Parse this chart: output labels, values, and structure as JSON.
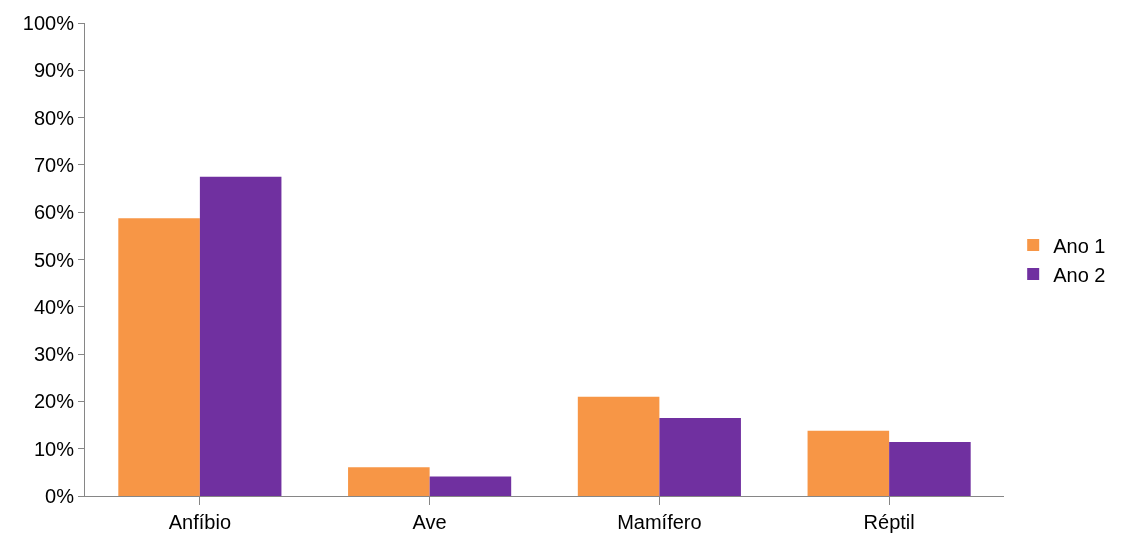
{
  "chart_data": {
    "type": "bar",
    "categories": [
      "Anfíbio",
      "Ave",
      "Mamífero",
      "Réptil"
    ],
    "series": [
      {
        "name": "Ano 1",
        "color": "#f79646",
        "values": [
          58.7,
          6.1,
          21.0,
          13.8
        ]
      },
      {
        "name": "Ano 2",
        "color": "#7030a0",
        "values": [
          67.5,
          4.1,
          16.5,
          11.4
        ]
      }
    ],
    "ylim": [
      0,
      100
    ],
    "yticks": [
      {
        "value": 0,
        "label": "0%"
      },
      {
        "value": 10,
        "label": "10%"
      },
      {
        "value": 20,
        "label": "20%"
      },
      {
        "value": 30,
        "label": "30%"
      },
      {
        "value": 40,
        "label": "40%"
      },
      {
        "value": 50,
        "label": "50%"
      },
      {
        "value": 60,
        "label": "60%"
      },
      {
        "value": 70,
        "label": "70%"
      },
      {
        "value": 80,
        "label": "80%"
      },
      {
        "value": 90,
        "label": "90%"
      },
      {
        "value": 100,
        "label": "100%"
      }
    ],
    "grid": false,
    "legend": "right"
  }
}
